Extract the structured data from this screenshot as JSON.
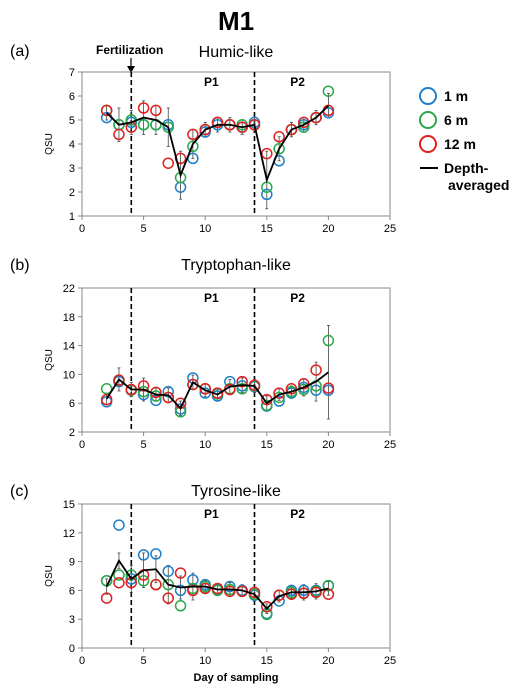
{
  "figure": {
    "title": "M1",
    "x_axis_label": "Day of sampling",
    "annotation": "Fertilization",
    "legend": [
      {
        "label": "1 m",
        "color": "#1f7fc8",
        "kind": "circle"
      },
      {
        "label": "6 m",
        "color": "#2aa84a",
        "kind": "circle"
      },
      {
        "label": "12 m",
        "color": "#e02020",
        "kind": "circle"
      },
      {
        "label": "Depth-",
        "label2": "averaged",
        "color": "#000000",
        "kind": "line"
      }
    ]
  },
  "chart_data": [
    {
      "type": "scatter",
      "panel": "(a)",
      "title": "Humic-like",
      "ylabel": "QSU",
      "xlim": [
        0,
        25
      ],
      "ylim": [
        1,
        7
      ],
      "xticks": [
        0,
        5,
        10,
        15,
        20,
        25
      ],
      "yticks": [
        1,
        2,
        3,
        4,
        5,
        6,
        7
      ],
      "vlines": [
        4,
        14
      ],
      "periods": [
        {
          "label": "P1",
          "x": 10.5
        },
        {
          "label": "P2",
          "x": 17.5
        }
      ],
      "series": [
        {
          "name": "1 m",
          "x": [
            2,
            3,
            4,
            5,
            6,
            7,
            8,
            9,
            10,
            11,
            12,
            13,
            14,
            15,
            16,
            17,
            18,
            19,
            20
          ],
          "y": [
            5.1,
            4.8,
            4.9,
            4.8,
            4.8,
            4.8,
            2.2,
            3.4,
            4.5,
            4.8,
            4.8,
            4.7,
            4.9,
            1.9,
            3.3,
            4.6,
            4.8,
            5.1,
            5.3
          ]
        },
        {
          "name": "6 m",
          "x": [
            2,
            3,
            4,
            5,
            6,
            7,
            8,
            9,
            10,
            11,
            12,
            13,
            14,
            15,
            16,
            17,
            18,
            19,
            20
          ],
          "y": [
            5.4,
            4.8,
            5.0,
            4.8,
            4.8,
            4.7,
            2.6,
            3.9,
            4.6,
            4.9,
            4.8,
            4.8,
            4.8,
            2.2,
            3.8,
            4.6,
            4.7,
            5.1,
            6.2
          ]
        },
        {
          "name": "12 m",
          "x": [
            2,
            3,
            4,
            5,
            6,
            7,
            8,
            9,
            10,
            11,
            12,
            13,
            14,
            15,
            16,
            17,
            18,
            19,
            20
          ],
          "y": [
            5.4,
            4.4,
            4.7,
            5.5,
            5.4,
            3.2,
            3.4,
            4.4,
            4.6,
            4.9,
            4.8,
            4.7,
            4.8,
            3.6,
            4.3,
            4.6,
            4.9,
            5.1,
            5.4
          ]
        }
      ],
      "error": [
        0.3,
        0.7,
        0.5,
        0.7,
        0.6,
        0.8,
        1.0,
        0.6,
        0.3,
        0.3,
        0.3,
        0.3,
        0.3,
        1.2,
        0.5,
        0.3,
        0.3,
        0.3,
        0.5
      ],
      "average": [
        5.3,
        4.8,
        4.9,
        5.1,
        5.0,
        4.7,
        2.7,
        4.0,
        4.6,
        4.8,
        4.8,
        4.7,
        4.8,
        2.5,
        3.8,
        4.6,
        4.8,
        5.1,
        5.6
      ]
    },
    {
      "type": "scatter",
      "panel": "(b)",
      "title": "Tryptophan-like",
      "ylabel": "QSU",
      "xlim": [
        0,
        25
      ],
      "ylim": [
        2,
        22
      ],
      "xticks": [
        0,
        5,
        10,
        15,
        20,
        25
      ],
      "yticks": [
        2,
        6,
        10,
        14,
        18,
        22
      ],
      "vlines": [
        4,
        14
      ],
      "periods": [
        {
          "label": "P1",
          "x": 10.5
        },
        {
          "label": "P2",
          "x": 17.5
        }
      ],
      "series": [
        {
          "name": "1 m",
          "x": [
            2,
            3,
            4,
            5,
            6,
            7,
            8,
            9,
            10,
            11,
            12,
            13,
            14,
            15,
            16,
            17,
            18,
            19,
            20
          ],
          "y": [
            6.2,
            9.0,
            7.8,
            7.2,
            6.4,
            7.6,
            5.2,
            9.5,
            7.4,
            7.0,
            9.0,
            8.4,
            8.3,
            5.6,
            6.3,
            7.4,
            8.2,
            7.8,
            7.8
          ]
        },
        {
          "name": "6 m",
          "x": [
            2,
            3,
            4,
            5,
            6,
            7,
            8,
            9,
            10,
            11,
            12,
            13,
            14,
            15,
            16,
            17,
            18,
            19,
            20
          ],
          "y": [
            8.0,
            9.2,
            7.8,
            7.6,
            7.0,
            6.8,
            4.8,
            8.6,
            8.0,
            7.3,
            8.0,
            8.0,
            8.4,
            5.7,
            6.8,
            7.6,
            7.9,
            8.4,
            14.7
          ]
        },
        {
          "name": "12 m",
          "x": [
            2,
            3,
            4,
            5,
            6,
            7,
            8,
            9,
            10,
            11,
            12,
            13,
            14,
            15,
            16,
            17,
            18,
            19,
            20
          ],
          "y": [
            6.5,
            9.2,
            7.9,
            8.4,
            7.5,
            6.8,
            6.0,
            8.6,
            8.0,
            7.4,
            7.9,
            9.0,
            8.5,
            6.5,
            7.4,
            8.0,
            8.7,
            10.6,
            8.1
          ]
        }
      ],
      "error": [
        0.8,
        1.6,
        1.0,
        1.6,
        0.9,
        1.0,
        1.0,
        1.0,
        0.9,
        0.9,
        1.0,
        1.0,
        0.9,
        1.0,
        0.8,
        0.8,
        1.2,
        2.7,
        6.5
      ],
      "average": [
        6.6,
        9.3,
        7.9,
        7.9,
        7.2,
        7.1,
        5.3,
        8.9,
        7.8,
        7.2,
        8.3,
        8.5,
        8.4,
        6.0,
        7.2,
        7.6,
        8.2,
        9.0,
        10.3
      ]
    },
    {
      "type": "scatter",
      "panel": "(c)",
      "title": "Tyrosine-like",
      "ylabel": "QSU",
      "xlim": [
        0,
        25
      ],
      "ylim": [
        0,
        15
      ],
      "xticks": [
        0,
        5,
        10,
        15,
        20,
        25
      ],
      "yticks": [
        0,
        3,
        6,
        9,
        12,
        15
      ],
      "vlines": [
        4,
        14
      ],
      "periods": [
        {
          "label": "P1",
          "x": 10.5
        },
        {
          "label": "P2",
          "x": 17.5
        }
      ],
      "series": [
        {
          "name": "1 m",
          "x": [
            2,
            3,
            4,
            5,
            6,
            7,
            8,
            9,
            10,
            11,
            12,
            13,
            14,
            15,
            16,
            17,
            18,
            19,
            20
          ],
          "y": [
            7.0,
            12.8,
            7.2,
            9.7,
            9.8,
            8.0,
            6.0,
            7.1,
            6.6,
            6.1,
            6.4,
            6.0,
            5.5,
            3.6,
            4.9,
            6.0,
            6.0,
            6.0,
            6.5
          ]
        },
        {
          "name": "6 m",
          "x": [
            2,
            3,
            4,
            5,
            6,
            7,
            8,
            9,
            10,
            11,
            12,
            13,
            14,
            15,
            16,
            17,
            18,
            19,
            20
          ],
          "y": [
            7.0,
            7.6,
            7.6,
            7.0,
            6.6,
            6.6,
            4.4,
            6.2,
            6.4,
            6.0,
            6.1,
            5.9,
            5.6,
            3.5,
            5.5,
            5.8,
            5.7,
            5.9,
            6.5
          ]
        },
        {
          "name": "12 m",
          "x": [
            2,
            3,
            4,
            5,
            6,
            7,
            8,
            9,
            10,
            11,
            12,
            13,
            14,
            15,
            16,
            17,
            18,
            19,
            20
          ],
          "y": [
            5.2,
            6.8,
            6.8,
            7.6,
            6.6,
            5.2,
            7.8,
            6.0,
            6.2,
            6.2,
            5.9,
            5.9,
            5.8,
            4.3,
            5.5,
            5.6,
            5.7,
            5.8,
            5.6
          ]
        }
      ],
      "error": [
        0.8,
        0.8,
        1.4,
        1.8,
        1.4,
        2.0,
        1.2,
        1.4,
        0.6,
        0.6,
        0.7,
        0.6,
        0.7,
        0.5,
        0.6,
        0.6,
        0.8,
        0.8,
        0.7
      ],
      "average": [
        6.4,
        9.1,
        7.2,
        8.1,
        8.2,
        6.6,
        6.3,
        6.4,
        6.4,
        6.1,
        6.1,
        6.0,
        5.6,
        4.1,
        5.4,
        5.8,
        5.8,
        5.9,
        6.2
      ]
    }
  ]
}
